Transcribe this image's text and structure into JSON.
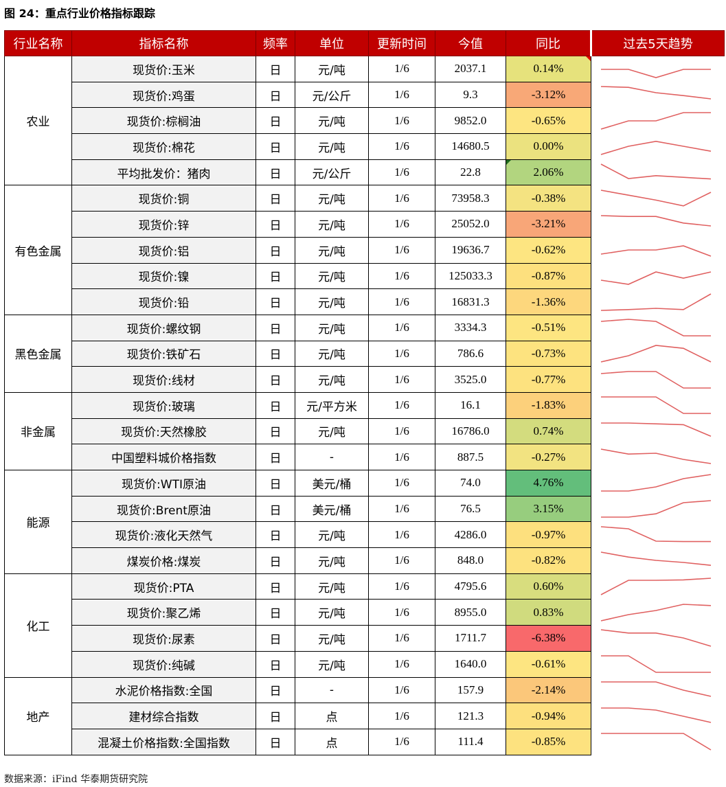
{
  "title": "图 24：重点行业价格指标跟踪",
  "source": "数据来源：iFind 华泰期货研究院",
  "headers": [
    "行业名称",
    "指标名称",
    "频率",
    "单位",
    "更新时间",
    "今值",
    "同比",
    "过去5天趋势"
  ],
  "colors": {
    "header_bg": "#c00000",
    "trend_line": "#e06060"
  },
  "groups": [
    {
      "name": "农业",
      "rows": [
        {
          "indicator": "现货价:玉米",
          "freq": "日",
          "unit": "元/吨",
          "date": "1/6",
          "value": "2037.1",
          "yoy": "0.14%",
          "yoy_color": "#e6e27c",
          "corner": "red",
          "trend": [
            3,
            3,
            1,
            3,
            3
          ]
        },
        {
          "indicator": "现货价:鸡蛋",
          "freq": "日",
          "unit": "元/公斤",
          "date": "1/6",
          "value": "9.3",
          "yoy": "-3.12%",
          "yoy_color": "#f8a877",
          "trend": [
            5,
            4.8,
            3.5,
            2.8,
            2
          ]
        },
        {
          "indicator": "现货价:棕榈油",
          "freq": "日",
          "unit": "元/吨",
          "date": "1/6",
          "value": "9852.0",
          "yoy": "-0.65%",
          "yoy_color": "#fde581",
          "trend": [
            1,
            3,
            3,
            5,
            5
          ]
        },
        {
          "indicator": "现货价:棉花",
          "freq": "日",
          "unit": "元/吨",
          "date": "1/6",
          "value": "14680.5",
          "yoy": "0.00%",
          "yoy_color": "#ebe27f",
          "trend": [
            1,
            3,
            4.2,
            3,
            1.8
          ]
        },
        {
          "indicator": "平均批发价：猪肉",
          "freq": "日",
          "unit": "元/公斤",
          "date": "1/6",
          "value": "22.8",
          "yoy": "2.06%",
          "yoy_color": "#b2d57f",
          "corner": "green",
          "trend": [
            5,
            1.5,
            2.2,
            1.8,
            1.4
          ]
        }
      ]
    },
    {
      "name": "有色金属",
      "rows": [
        {
          "indicator": "现货价:铜",
          "freq": "日",
          "unit": "元/吨",
          "date": "1/6",
          "value": "73958.3",
          "yoy": "-0.38%",
          "yoy_color": "#f4e381",
          "trend": [
            5,
            3.8,
            2.6,
            1.2,
            4.5
          ]
        },
        {
          "indicator": "现货价:锌",
          "freq": "日",
          "unit": "元/吨",
          "date": "1/6",
          "value": "25052.0",
          "yoy": "-3.21%",
          "yoy_color": "#f8a678",
          "trend": [
            5,
            4.8,
            4.8,
            3.2,
            2.5
          ]
        },
        {
          "indicator": "现货价:铝",
          "freq": "日",
          "unit": "元/吨",
          "date": "1/6",
          "value": "19636.7",
          "yoy": "-0.62%",
          "yoy_color": "#fde581",
          "trend": [
            2,
            3,
            3,
            4,
            1.5
          ]
        },
        {
          "indicator": "现货价:镍",
          "freq": "日",
          "unit": "元/吨",
          "date": "1/6",
          "value": "125033.3",
          "yoy": "-0.87%",
          "yoy_color": "#fde07e",
          "trend": [
            2,
            1,
            4,
            2.5,
            4
          ]
        },
        {
          "indicator": "现货价:铅",
          "freq": "日",
          "unit": "元/吨",
          "date": "1/6",
          "value": "16831.3",
          "yoy": "-1.36%",
          "yoy_color": "#fdd77d",
          "trend": [
            1,
            1.2,
            1.5,
            1.2,
            5
          ]
        }
      ]
    },
    {
      "name": "黑色金属",
      "rows": [
        {
          "indicator": "现货价:螺纹钢",
          "freq": "日",
          "unit": "元/吨",
          "date": "1/6",
          "value": "3334.3",
          "yoy": "-0.51%",
          "yoy_color": "#fde581",
          "trend": [
            4.5,
            5,
            4.5,
            1,
            1
          ]
        },
        {
          "indicator": "现货价:铁矿石",
          "freq": "日",
          "unit": "元/吨",
          "date": "1/6",
          "value": "786.6",
          "yoy": "-0.73%",
          "yoy_color": "#fde37f",
          "trend": [
            1,
            2.5,
            5,
            4.3,
            1
          ]
        },
        {
          "indicator": "现货价:线材",
          "freq": "日",
          "unit": "元/吨",
          "date": "1/6",
          "value": "3525.0",
          "yoy": "-0.77%",
          "yoy_color": "#fde27f",
          "trend": [
            4.5,
            5,
            5,
            1,
            1
          ]
        }
      ]
    },
    {
      "name": "非金属",
      "rows": [
        {
          "indicator": "现货价:玻璃",
          "freq": "日",
          "unit": "元/平方米",
          "date": "1/6",
          "value": "16.1",
          "yoy": "-1.83%",
          "yoy_color": "#fcd07b",
          "trend": [
            5,
            5,
            5,
            1,
            1
          ]
        },
        {
          "indicator": "现货价:天然橡胶",
          "freq": "日",
          "unit": "元/吨",
          "date": "1/6",
          "value": "16786.0",
          "yoy": "0.74%",
          "yoy_color": "#d3dc7e",
          "trend": [
            5,
            5,
            4.8,
            4.6,
            1.8
          ]
        },
        {
          "indicator": "中国塑料城价格指数",
          "freq": "日",
          "unit": "-",
          "date": "1/6",
          "value": "887.5",
          "yoy": "-0.27%",
          "yoy_color": "#f2e381",
          "trend": [
            5,
            3.8,
            4,
            2.5,
            1.5
          ]
        }
      ]
    },
    {
      "name": "能源",
      "rows": [
        {
          "indicator": "现货价:WTI原油",
          "freq": "日",
          "unit": "美元/桶",
          "date": "1/6",
          "value": "74.0",
          "yoy": "4.76%",
          "yoy_color": "#63be7b",
          "trend": [
            1,
            1,
            2,
            4,
            5
          ]
        },
        {
          "indicator": "现货价:Brent原油",
          "freq": "日",
          "unit": "美元/桶",
          "date": "1/6",
          "value": "76.5",
          "yoy": "3.15%",
          "yoy_color": "#97cd7e",
          "trend": [
            1,
            1,
            1.8,
            4.5,
            5
          ]
        },
        {
          "indicator": "现货价:液化天然气",
          "freq": "日",
          "unit": "元/吨",
          "date": "1/6",
          "value": "4286.0",
          "yoy": "-0.97%",
          "yoy_color": "#fde07e",
          "trend": [
            5,
            4.5,
            1.5,
            1.4,
            1.4
          ]
        },
        {
          "indicator": "煤炭价格:煤炭",
          "freq": "日",
          "unit": "元/吨",
          "date": "1/6",
          "value": "848.0",
          "yoy": "-0.82%",
          "yoy_color": "#fde27f",
          "trend": [
            5,
            3.8,
            3,
            2.5,
            1.8
          ]
        }
      ]
    },
    {
      "name": "化工",
      "rows": [
        {
          "indicator": "现货价:PTA",
          "freq": "日",
          "unit": "元/吨",
          "date": "1/6",
          "value": "4795.6",
          "yoy": "0.60%",
          "yoy_color": "#d8dd7e",
          "trend": [
            1,
            4.5,
            4.5,
            4.6,
            5
          ]
        },
        {
          "indicator": "现货价:聚乙烯",
          "freq": "日",
          "unit": "元/吨",
          "date": "1/6",
          "value": "8955.0",
          "yoy": "0.83%",
          "yoy_color": "#d0db7e",
          "trend": [
            1,
            2.5,
            3.5,
            5,
            4.7
          ]
        },
        {
          "indicator": "现货价:尿素",
          "freq": "日",
          "unit": "元/吨",
          "date": "1/6",
          "value": "1711.7",
          "yoy": "-6.38%",
          "yoy_color": "#f8696b",
          "trend": [
            5,
            4.2,
            4.2,
            3,
            1
          ]
        },
        {
          "indicator": "现货价:纯碱",
          "freq": "日",
          "unit": "元/吨",
          "date": "1/6",
          "value": "1640.0",
          "yoy": "-0.61%",
          "yoy_color": "#fde581",
          "trend": [
            5,
            5,
            1,
            1,
            1
          ]
        }
      ]
    },
    {
      "name": "地产",
      "rows": [
        {
          "indicator": "水泥价格指数:全国",
          "freq": "日",
          "unit": "-",
          "date": "1/6",
          "value": "157.9",
          "yoy": "-2.14%",
          "yoy_color": "#fbc77a",
          "trend": [
            5,
            5,
            5,
            3,
            1.5
          ]
        },
        {
          "indicator": "建材综合指数",
          "freq": "日",
          "unit": "点",
          "date": "1/6",
          "value": "121.3",
          "yoy": "-0.94%",
          "yoy_color": "#fde07e",
          "trend": [
            5,
            5,
            4.5,
            3,
            1.5
          ]
        },
        {
          "indicator": "混凝土价格指数:全国指数",
          "freq": "日",
          "unit": "点",
          "date": "1/6",
          "value": "111.4",
          "yoy": "-0.85%",
          "yoy_color": "#fde27f",
          "trend": [
            5,
            5,
            5,
            5,
            1
          ]
        }
      ]
    }
  ]
}
